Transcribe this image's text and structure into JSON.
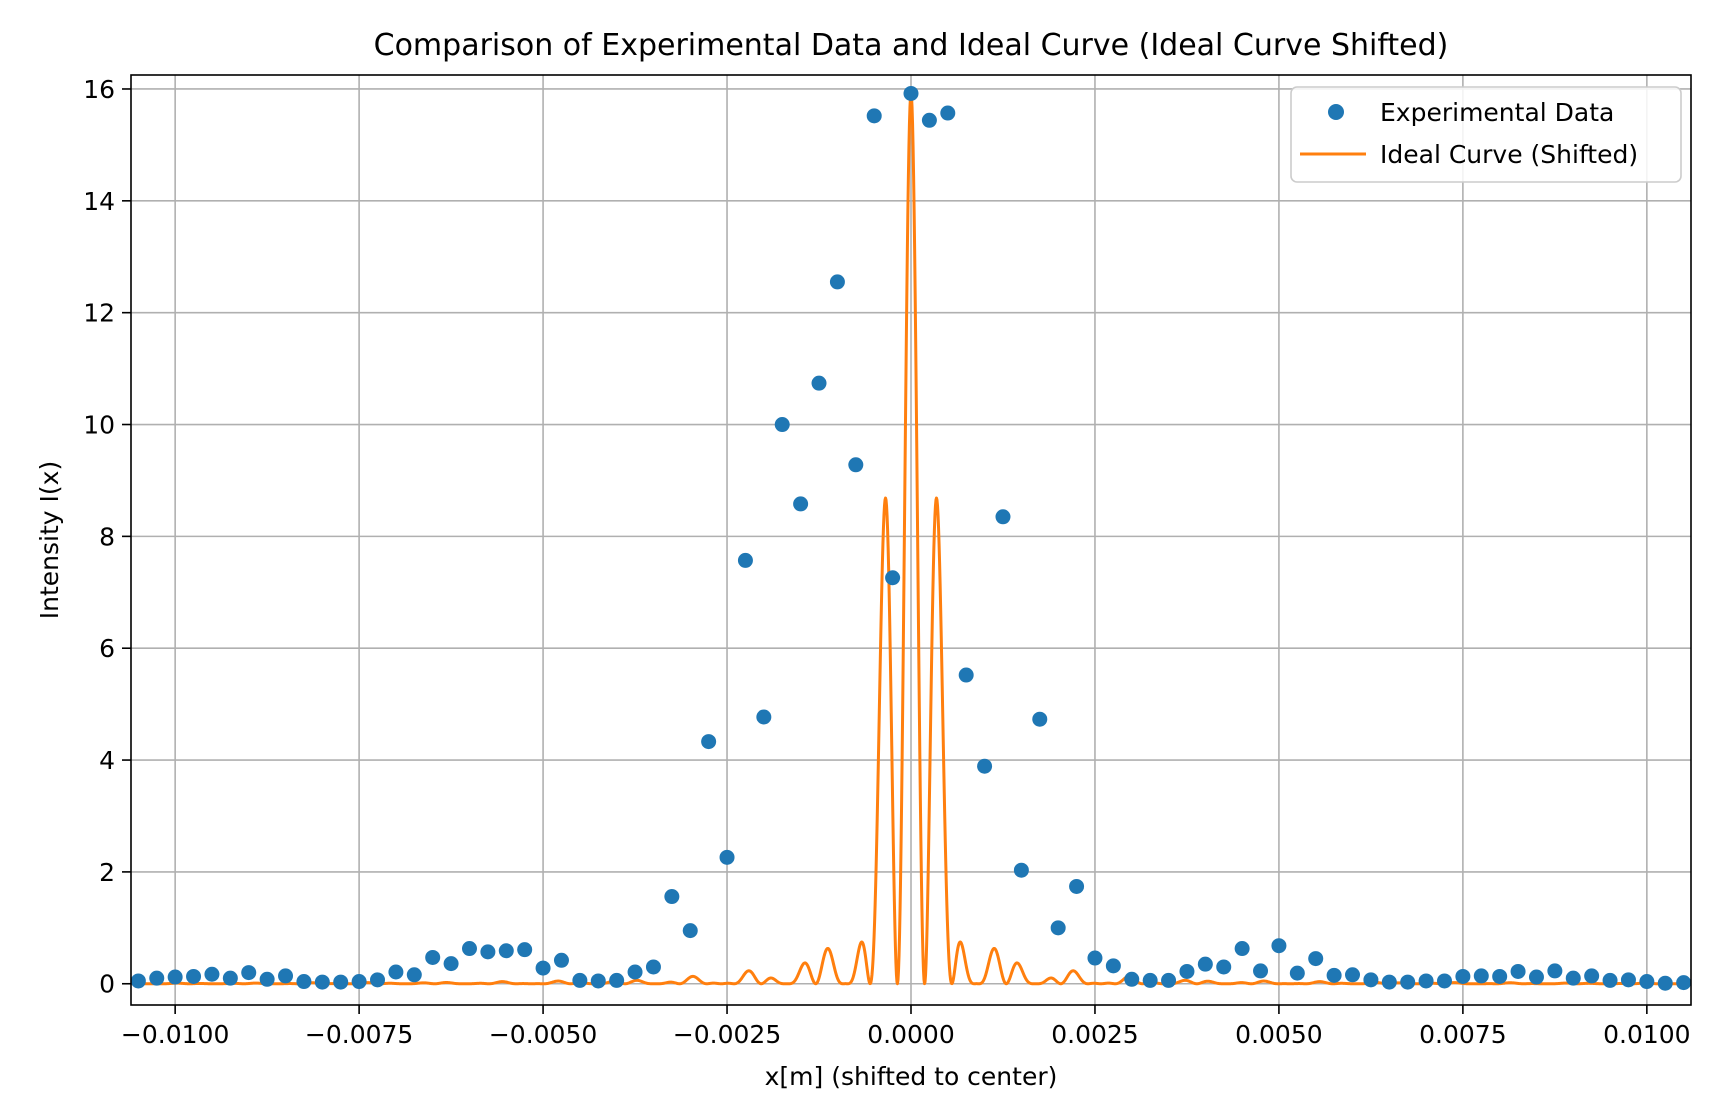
{
  "chart_data": {
    "type": "scatter",
    "title": "Comparison of Experimental Data and Ideal Curve (Ideal Curve Shifted)",
    "xlabel": "x[m] (shifted to center)",
    "ylabel": "Intensity I(x)",
    "xlim": [
      -0.0106,
      0.0106
    ],
    "ylim": [
      -0.38,
      16.25
    ],
    "xticks": [
      -0.01,
      -0.0075,
      -0.005,
      -0.0025,
      0.0,
      0.0025,
      0.005,
      0.0075,
      0.01
    ],
    "xtick_labels": [
      "−0.0100",
      "−0.0075",
      "−0.0050",
      "−0.0025",
      "0.0000",
      "0.0025",
      "0.0050",
      "0.0075",
      "0.0100"
    ],
    "yticks": [
      0,
      2,
      4,
      6,
      8,
      10,
      12,
      14,
      16
    ],
    "ytick_labels": [
      "0",
      "2",
      "4",
      "6",
      "8",
      "10",
      "12",
      "14",
      "16"
    ],
    "grid": true,
    "legend_position": "top-right",
    "series": [
      {
        "name": "Experimental Data",
        "kind": "scatter",
        "color": "#1f77b4",
        "x": [
          -0.0105,
          -0.01025,
          -0.01,
          -0.00975,
          -0.0095,
          -0.00925,
          -0.009,
          -0.00875,
          -0.0085,
          -0.00825,
          -0.008,
          -0.00775,
          -0.0075,
          -0.00725,
          -0.007,
          -0.00675,
          -0.0065,
          -0.00625,
          -0.006,
          -0.00575,
          -0.0055,
          -0.00525,
          -0.005,
          -0.00475,
          -0.0045,
          -0.00425,
          -0.004,
          -0.00375,
          -0.0035,
          -0.00325,
          -0.003,
          -0.00275,
          -0.0025,
          -0.00225,
          -0.002,
          -0.00175,
          -0.0015,
          -0.00125,
          -0.001,
          -0.00075,
          -0.0005,
          -0.00025,
          0.0,
          0.00025,
          0.0005,
          0.00075,
          0.001,
          0.00125,
          0.0015,
          0.00175,
          0.002,
          0.00225,
          0.0025,
          0.00275,
          0.003,
          0.00325,
          0.0035,
          0.00375,
          0.004,
          0.00425,
          0.0045,
          0.00475,
          0.005,
          0.00525,
          0.0055,
          0.00575,
          0.006,
          0.00625,
          0.0065,
          0.00675,
          0.007,
          0.00725,
          0.0075,
          0.00775,
          0.008,
          0.00825,
          0.0085,
          0.00875,
          0.009,
          0.00925,
          0.0095,
          0.00975,
          0.01,
          0.01025,
          0.0105
        ],
        "y": [
          0.05,
          0.1,
          0.12,
          0.13,
          0.17,
          0.1,
          0.2,
          0.08,
          0.14,
          0.04,
          0.03,
          0.03,
          0.04,
          0.07,
          0.21,
          0.16,
          0.47,
          0.36,
          0.63,
          0.57,
          0.59,
          0.61,
          0.28,
          0.42,
          0.06,
          0.05,
          0.06,
          0.21,
          0.3,
          1.56,
          0.95,
          4.33,
          2.26,
          7.57,
          4.77,
          10.0,
          8.58,
          10.74,
          12.55,
          9.28,
          15.52,
          7.26,
          15.92,
          15.44,
          15.57,
          5.52,
          3.89,
          8.35,
          2.03,
          4.73,
          1.0,
          1.74,
          0.46,
          0.32,
          0.08,
          0.06,
          0.06,
          0.22,
          0.35,
          0.3,
          0.63,
          0.23,
          0.68,
          0.19,
          0.45,
          0.15,
          0.16,
          0.07,
          0.03,
          0.03,
          0.05,
          0.05,
          0.13,
          0.14,
          0.13,
          0.22,
          0.12,
          0.23,
          0.1,
          0.14,
          0.06,
          0.07,
          0.04,
          0.01,
          0.02
        ]
      },
      {
        "name": "Ideal Curve (Shifted)",
        "kind": "line",
        "color": "#ff7f0e",
        "model": "I(x) = I0 · sinc²(x / a) · cos²(π x / p)",
        "I0": 15.92,
        "a": 0.00086,
        "p": 0.00037,
        "x_range": [
          -0.0106,
          0.0106
        ]
      }
    ]
  }
}
